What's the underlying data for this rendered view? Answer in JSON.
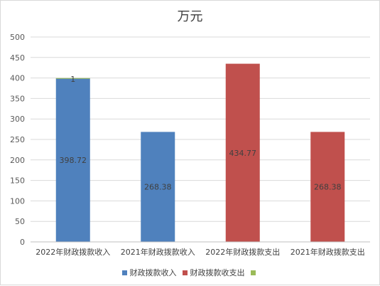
{
  "chart_data": {
    "type": "bar",
    "stacked": true,
    "title": "万元",
    "categories": [
      "2022年财政拨款收入",
      "2021年财政拨款收入",
      "2022年财政拨款支出",
      "2021年财政拨款支出"
    ],
    "ylim": [
      0,
      500
    ],
    "yticks": [
      0,
      50,
      100,
      150,
      200,
      250,
      300,
      350,
      400,
      450,
      500
    ],
    "grid": true,
    "legend_position": "bottom",
    "series": [
      {
        "name": "财政拨款收入",
        "color": "#4f81bd",
        "values": [
          398.72,
          268.38,
          null,
          null
        ],
        "labels": [
          "398.72",
          "268.38",
          "",
          ""
        ]
      },
      {
        "name": "财政拨款收支出",
        "color": "#c0504d",
        "values": [
          null,
          null,
          434.77,
          268.38
        ],
        "labels": [
          "",
          "",
          "434.77",
          "268.38"
        ]
      },
      {
        "name": "",
        "color": "#9bbb59",
        "values": [
          1,
          null,
          null,
          null
        ],
        "labels": [
          "1",
          "",
          "",
          ""
        ]
      }
    ]
  }
}
